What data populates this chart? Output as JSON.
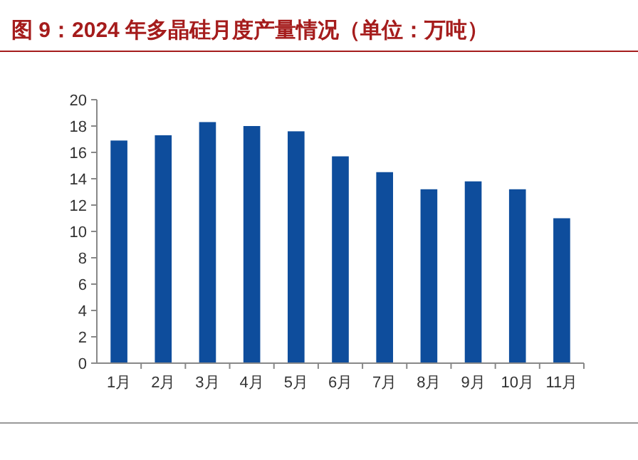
{
  "chart_data": {
    "type": "bar",
    "title": "图 9：2024 年多晶硅月度产量情况（单位：万吨）",
    "categories": [
      "1月",
      "2月",
      "3月",
      "4月",
      "5月",
      "6月",
      "7月",
      "8月",
      "9月",
      "10月",
      "11月"
    ],
    "values": [
      16.9,
      17.3,
      18.3,
      18.0,
      17.6,
      15.7,
      14.5,
      13.2,
      13.8,
      13.2,
      11.0
    ],
    "color": "#0e4d9c",
    "ylim": [
      0,
      20
    ],
    "yticks": [
      0,
      2,
      4,
      6,
      8,
      10,
      12,
      14,
      16,
      18,
      20
    ],
    "grid": false
  }
}
